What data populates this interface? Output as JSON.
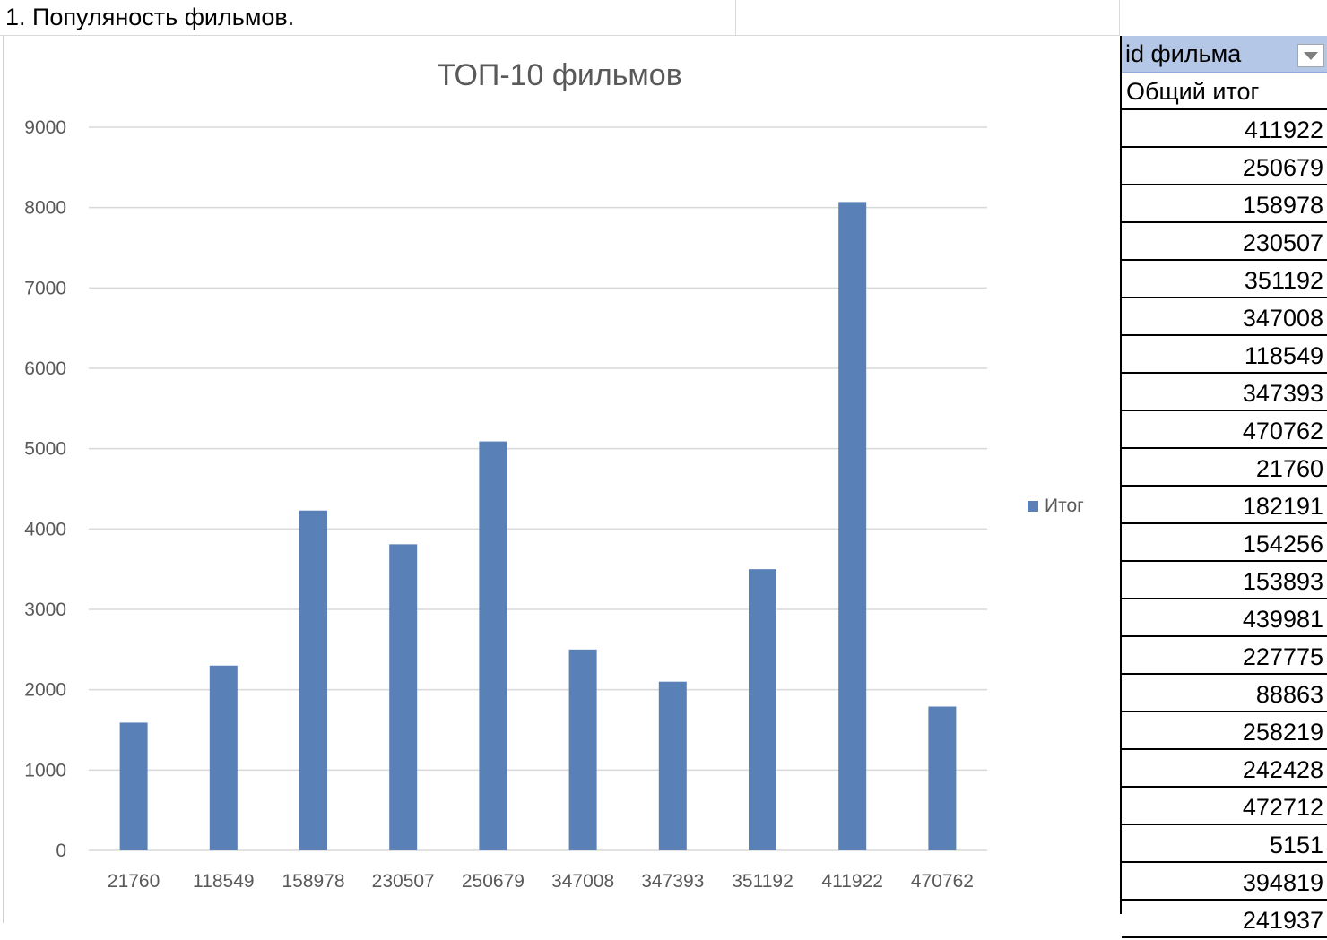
{
  "sheet": {
    "title_cell": "1. Популяность фильмов."
  },
  "pivot": {
    "header_label": "id фильма",
    "total_label": "Общий итог",
    "rows": [
      "411922",
      "250679",
      "158978",
      "230507",
      "351192",
      "347008",
      "118549",
      "347393",
      "470762",
      "21760",
      "182191",
      "154256",
      "153893",
      "439981",
      "227775",
      "88863",
      "258219",
      "242428",
      "472712",
      "5151",
      "394819",
      "241937"
    ]
  },
  "chart_data": {
    "type": "bar",
    "title": "ТОП-10 фильмов",
    "categories": [
      "21760",
      "118549",
      "158978",
      "230507",
      "250679",
      "347008",
      "347393",
      "351192",
      "411922",
      "470762"
    ],
    "series": [
      {
        "name": "Итог",
        "values": [
          1590,
          2300,
          4230,
          3810,
          5090,
          2500,
          2100,
          3500,
          8070,
          1790
        ]
      }
    ],
    "ylim": [
      0,
      9000
    ],
    "yticks": [
      0,
      1000,
      2000,
      3000,
      4000,
      5000,
      6000,
      7000,
      8000,
      9000
    ],
    "grid": true,
    "legend_position": "right",
    "bar_color": "#5a80b8",
    "gridline_color": "#d9d9d9",
    "text_color": "#595959"
  }
}
